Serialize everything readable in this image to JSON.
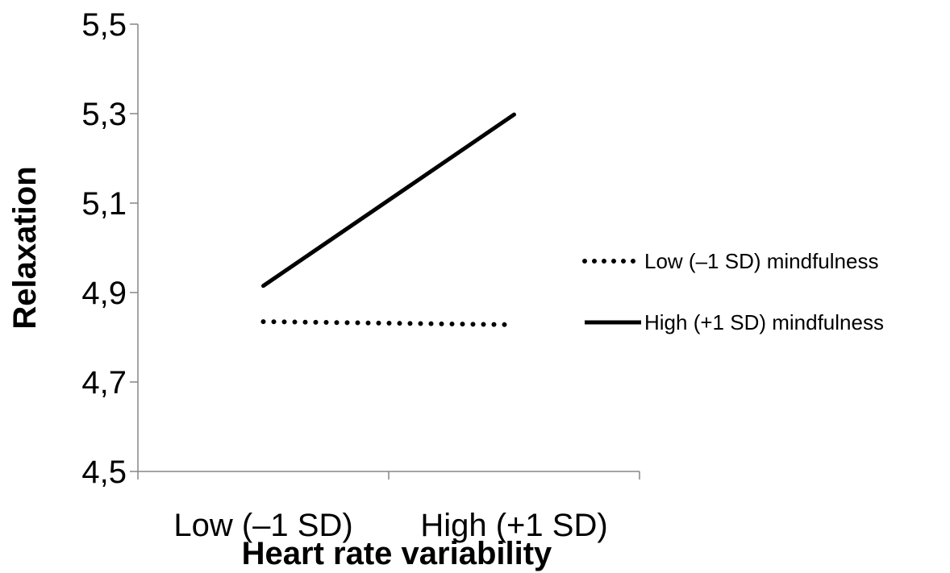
{
  "chart_data": {
    "type": "line",
    "categories": [
      "Low (–1 SD)",
      "High (+1 SD)"
    ],
    "series": [
      {
        "name": "Low (–1 SD) mindfulness",
        "values": [
          4.835,
          4.828
        ],
        "style": "dotted",
        "color": "#000000"
      },
      {
        "name": "High (+1 SD) mindfulness",
        "values": [
          4.915,
          5.298
        ],
        "style": "solid",
        "color": "#000000"
      }
    ],
    "title": "",
    "xlabel": "Heart rate variability",
    "ylabel": "Relaxation",
    "ylim": [
      4.5,
      5.5
    ],
    "yticks": [
      "4,5",
      "4,7",
      "4,9",
      "5,1",
      "5,3",
      "5,5"
    ],
    "grid": false,
    "legend_position": "right"
  }
}
